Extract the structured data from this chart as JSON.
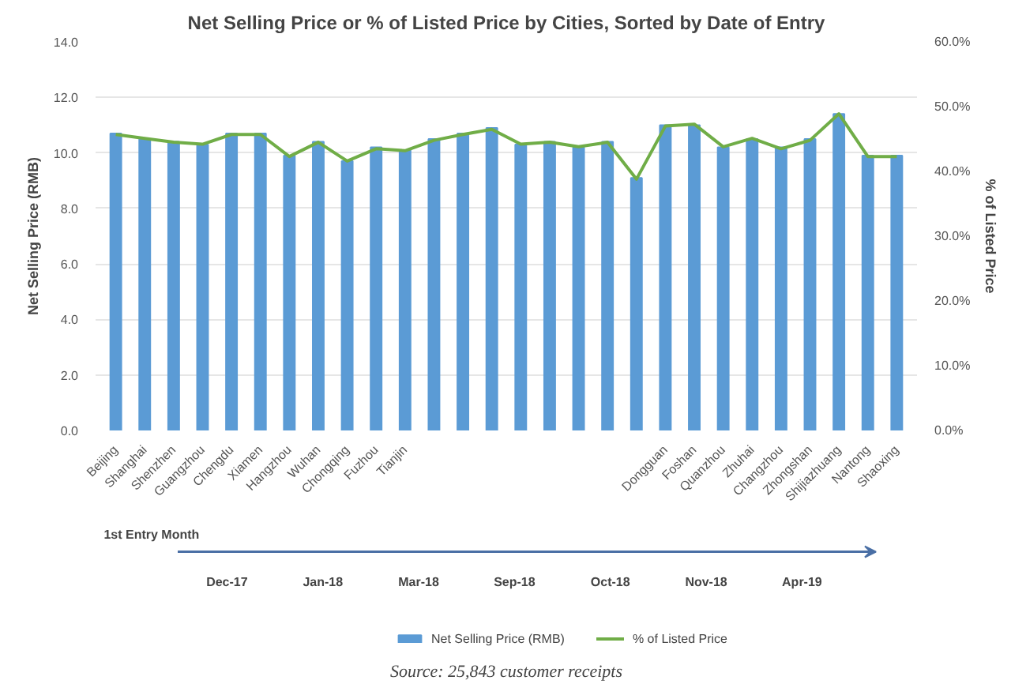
{
  "chart_data": {
    "type": "bar",
    "title": "Net Selling Price or % of Listed Price by Cities, Sorted by Date of Entry",
    "ylabel": "Net Selling Price (RMB)",
    "y2label": "% of Listed Price",
    "categories": [
      "Beijing",
      "Shanghai",
      "Shenzhen",
      "Guangzhou",
      "Chengdu",
      "Xiamen",
      "Hangzhou",
      "Wuhan",
      "Chongqing",
      "Fuzhou",
      "Tianjin",
      null,
      null,
      null,
      null,
      null,
      null,
      null,
      null,
      "Dongguan",
      "Foshan",
      "Quanzhou",
      "Zhuhai",
      "Changzhou",
      "Zhongshan",
      "Shijiazhuang",
      "Nantong",
      "Shaoxing"
    ],
    "series": [
      {
        "name": "Net Selling Price (RMB)",
        "color": "#5b9bd5",
        "values": [
          10.7,
          10.5,
          10.4,
          10.3,
          10.7,
          10.7,
          9.9,
          10.4,
          9.7,
          10.2,
          10.1,
          10.5,
          10.7,
          10.9,
          10.3,
          10.4,
          10.2,
          10.4,
          9.1,
          11.0,
          11.0,
          10.2,
          10.5,
          10.2,
          10.5,
          11.4,
          9.9,
          9.9
        ]
      },
      {
        "name": "% of Listed Price",
        "type": "line",
        "axis": "y2",
        "color": "#70ad47",
        "values": [
          45.7,
          45.1,
          44.5,
          44.2,
          45.7,
          45.7,
          42.3,
          44.5,
          41.6,
          43.5,
          43.2,
          44.8,
          45.7,
          46.5,
          44.2,
          44.5,
          43.8,
          44.5,
          38.8,
          47.0,
          47.3,
          43.8,
          45.1,
          43.5,
          44.8,
          48.9,
          42.3,
          42.3
        ]
      }
    ],
    "ylim": [
      0,
      14
    ],
    "yticks": [
      {
        "value": 0,
        "label": "0.0"
      },
      {
        "value": 2,
        "label": "2.0"
      },
      {
        "value": 4,
        "label": "4.0"
      },
      {
        "value": 6,
        "label": "6.0"
      },
      {
        "value": 8,
        "label": "8.0"
      },
      {
        "value": 10,
        "label": "10.0"
      },
      {
        "value": 12,
        "label": "12.0"
      },
      {
        "value": 14,
        "label": "14.0"
      }
    ],
    "y2lim": [
      0,
      60
    ],
    "y2ticks": [
      {
        "value": 0,
        "label": "0.0%"
      },
      {
        "value": 10,
        "label": "10.0%"
      },
      {
        "value": 20,
        "label": "20.0%"
      },
      {
        "value": 30,
        "label": "30.0%"
      },
      {
        "value": 40,
        "label": "40.0%"
      },
      {
        "value": 50,
        "label": "50.0%"
      },
      {
        "value": 60,
        "label": "60.0%"
      }
    ],
    "grid": "y",
    "legend": "bottom",
    "annotations": [
      "1st Entry Month",
      "Dec-17",
      "Jan-18",
      "Mar-18",
      "Sep-18",
      "Oct-18",
      "Nov-18",
      "Apr-19",
      "Source: 25,843 customer receipts"
    ]
  }
}
